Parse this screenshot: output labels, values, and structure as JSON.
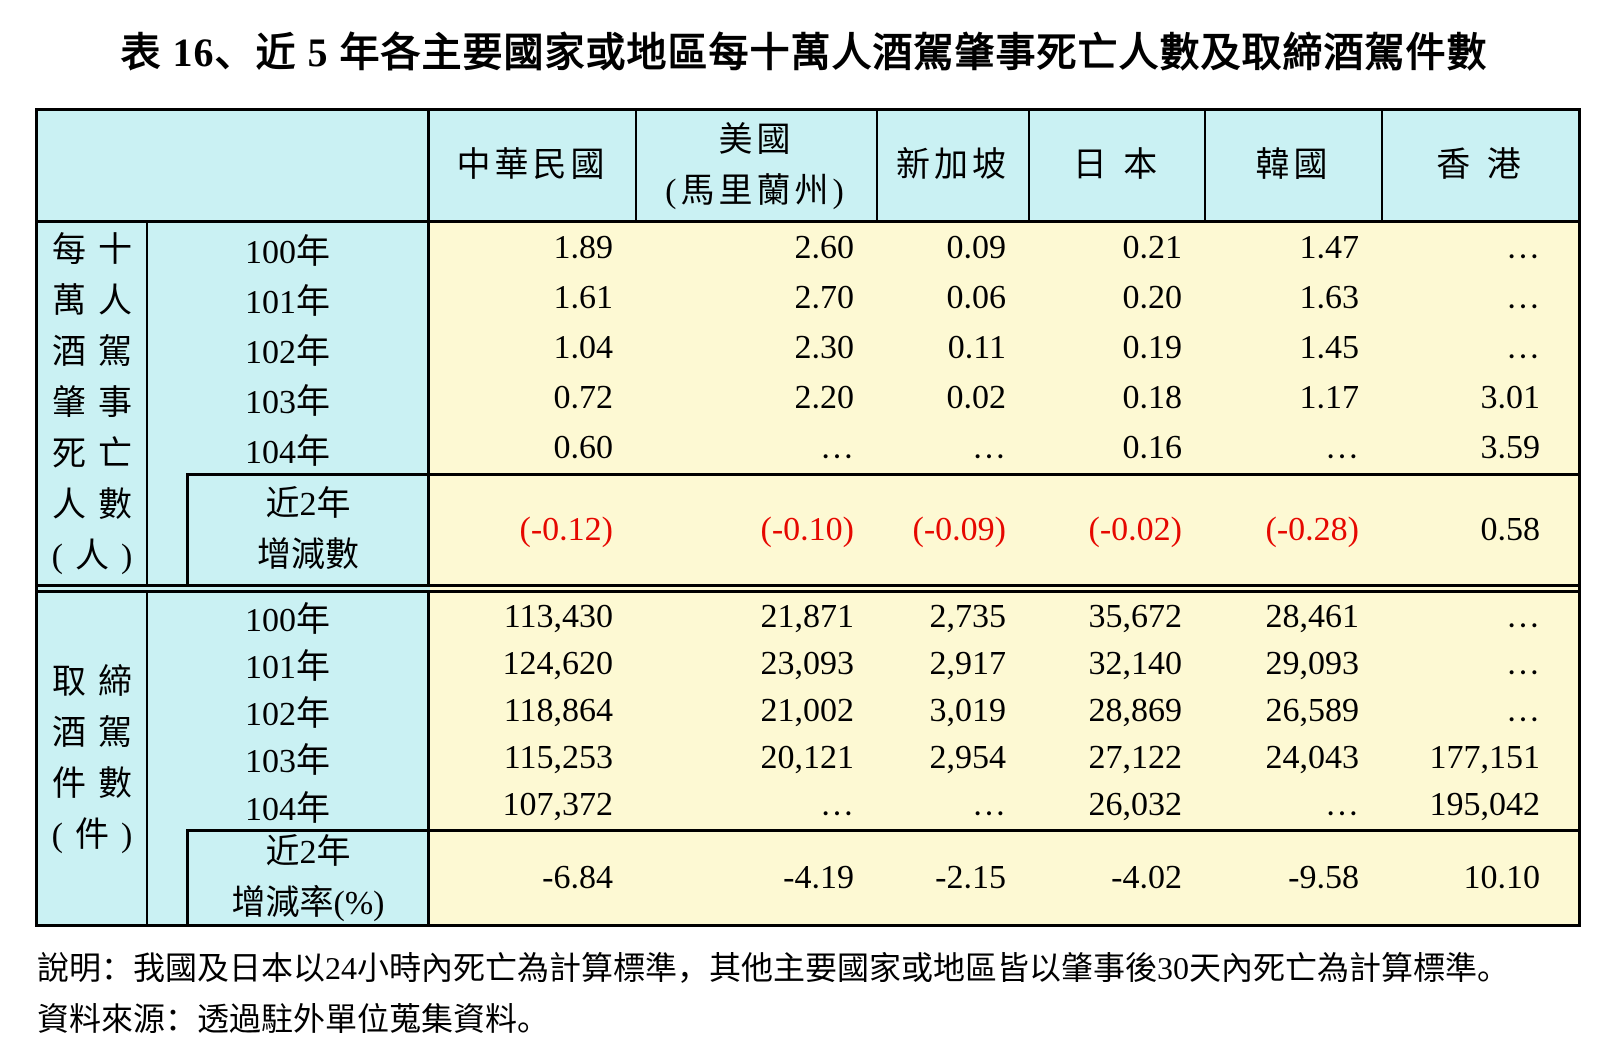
{
  "title": "表 16、近 5 年各主要國家或地區每十萬人酒駕肇事死亡人數及取締酒駕件數",
  "table": {
    "columns": [
      "中華民國",
      "美國\n(馬里蘭州)",
      "新加坡",
      "日 本",
      "韓國",
      "香 港"
    ],
    "sections": [
      {
        "row_header": "每十\n萬人\n酒駕\n肇事\n死亡\n人數\n(人)",
        "years": [
          "100年",
          "101年",
          "102年",
          "103年",
          "104年"
        ],
        "rows": [
          [
            "1.89",
            "2.60",
            "0.09",
            "0.21",
            "1.47",
            "…"
          ],
          [
            "1.61",
            "2.70",
            "0.06",
            "0.20",
            "1.63",
            "…"
          ],
          [
            "1.04",
            "2.30",
            "0.11",
            "0.19",
            "1.45",
            "…"
          ],
          [
            "0.72",
            "2.20",
            "0.02",
            "0.18",
            "1.17",
            "3.01"
          ],
          [
            "0.60",
            "…",
            "…",
            "0.16",
            "…",
            "3.59"
          ]
        ],
        "change_label": "近2年\n增減數",
        "change_values": [
          "(-0.12)",
          "(-0.10)",
          "(-0.09)",
          "(-0.02)",
          "(-0.28)",
          "0.58"
        ]
      },
      {
        "row_header": "取締\n酒駕\n件數\n(件)",
        "years": [
          "100年",
          "101年",
          "102年",
          "103年",
          "104年"
        ],
        "rows": [
          [
            "113,430",
            "21,871",
            "2,735",
            "35,672",
            "28,461",
            "…"
          ],
          [
            "124,620",
            "23,093",
            "2,917",
            "32,140",
            "29,093",
            "…"
          ],
          [
            "118,864",
            "21,002",
            "3,019",
            "28,869",
            "26,589",
            "…"
          ],
          [
            "115,253",
            "20,121",
            "2,954",
            "27,122",
            "24,043",
            "177,151"
          ],
          [
            "107,372",
            "…",
            "…",
            "26,032",
            "…",
            "195,042"
          ]
        ],
        "change_label": "近2年\n增減率(%)",
        "change_values": [
          "-6.84",
          "-4.19",
          "-2.15",
          "-4.02",
          "-9.58",
          "10.10"
        ]
      }
    ]
  },
  "notes": [
    "說明：我國及日本以24小時內死亡為計算標準，其他主要國家或地區皆以肇事後30天內死亡為計算標準。",
    "資料來源：透過駐外單位蒐集資料。"
  ],
  "colors": {
    "header_bg": "#caf1f3",
    "data_bg": "#fdf9d3",
    "negative": "#e60800",
    "border": "#000000"
  }
}
